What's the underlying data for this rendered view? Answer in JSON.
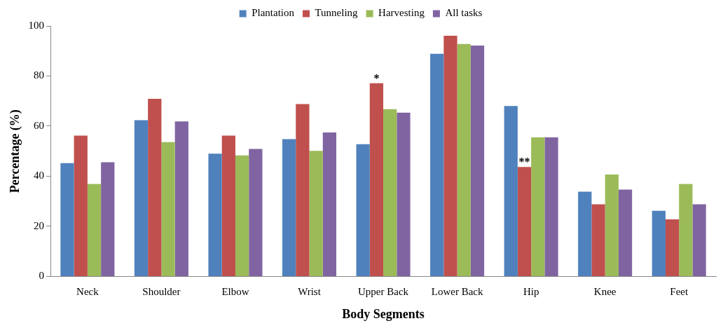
{
  "chart_data": {
    "type": "bar",
    "xlabel": "Body Segments",
    "ylabel": "Percentage (%)",
    "categories": [
      "Neck",
      "Shoulder",
      "Elbow",
      "Wrist",
      "Upper Back",
      "Lower Back",
      "Hip",
      "Knee",
      "Feet"
    ],
    "series": [
      {
        "name": "Plantation",
        "color": "#4f81bd",
        "values": [
          45.2,
          62.4,
          49.0,
          54.8,
          52.8,
          88.9,
          68.0,
          33.8,
          26.2
        ]
      },
      {
        "name": "Tunneling",
        "color": "#c0504d",
        "values": [
          56.2,
          70.9,
          56.2,
          68.8,
          77.1,
          96.1,
          43.7,
          28.8,
          22.8
        ]
      },
      {
        "name": "Harvesting",
        "color": "#9bbb59",
        "values": [
          36.9,
          53.6,
          48.3,
          50.1,
          66.8,
          92.8,
          55.5,
          40.7,
          36.9
        ]
      },
      {
        "name": "All tasks",
        "color": "#8064a2",
        "values": [
          45.6,
          61.9,
          50.9,
          57.5,
          65.4,
          92.2,
          55.5,
          34.7,
          28.8
        ]
      }
    ],
    "ylim": [
      0,
      100
    ],
    "yticks": [
      0,
      20,
      40,
      60,
      80,
      100
    ],
    "grid": false,
    "legend": "top",
    "annotations": [
      {
        "text": "*",
        "x": "Upper Back",
        "y": 77.1
      },
      {
        "text": "**",
        "x": "Hip",
        "y": 43.7
      }
    ]
  }
}
